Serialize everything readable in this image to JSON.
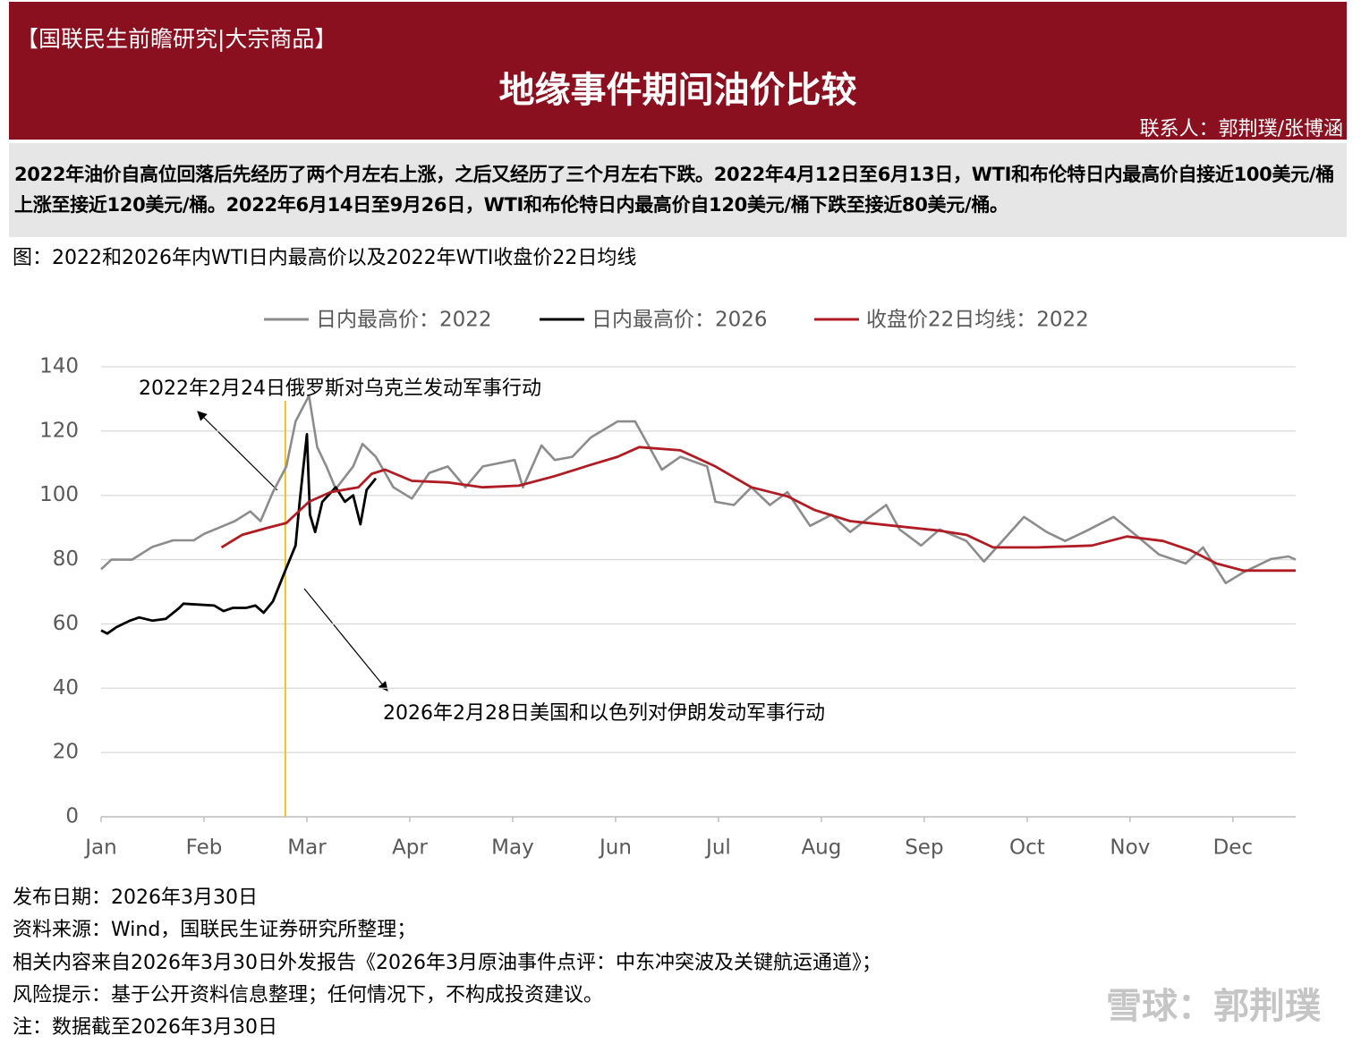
{
  "header": {
    "brand": "【国联民生前瞻研究|大宗商品】",
    "title": "地缘事件期间油价比较",
    "contact": "联系人：郭荆璞/张博涵"
  },
  "summary": "2022年油价自高位回落后先经历了两个月左右上涨，之后又经历了三个月左右下跌。2022年4月12日至6月13日，WTI和布伦特日内最高价自接近100美元/桶上涨至接近120美元/桶。2022年6月14日至9月26日，WTI和布伦特日内最高价自120美元/桶下跌至接近80美元/桶。",
  "caption": "图：2022和2026年内WTI日内最高价以及2022年WTI收盘价22日均线",
  "chart_data": {
    "type": "line",
    "xlim": [
      0,
      11.61
    ],
    "xticks": [
      {
        "value": 0,
        "label": "Jan"
      },
      {
        "value": 1,
        "label": "Feb"
      },
      {
        "value": 2,
        "label": "Mar"
      },
      {
        "value": 3,
        "label": "Apr"
      },
      {
        "value": 4,
        "label": "May"
      },
      {
        "value": 5,
        "label": "Jun"
      },
      {
        "value": 6,
        "label": "Jul"
      },
      {
        "value": 7,
        "label": "Aug"
      },
      {
        "value": 8,
        "label": "Sep"
      },
      {
        "value": 9,
        "label": "Oct"
      },
      {
        "value": 10,
        "label": "Nov"
      },
      {
        "value": 11,
        "label": "Dec"
      }
    ],
    "ylim": [
      0,
      140
    ],
    "yticks": [
      0,
      20,
      40,
      60,
      80,
      100,
      120,
      140
    ],
    "grid": true,
    "legend": "top",
    "series": [
      {
        "name": "日内最高价：2022",
        "color": "#8c8c8c",
        "x": [
          0,
          0.1,
          0.3,
          0.5,
          0.7,
          0.9,
          1.0,
          1.3,
          1.45,
          1.55,
          1.67,
          1.8,
          1.89,
          2.02,
          2.1,
          2.19,
          2.28,
          2.45,
          2.54,
          2.67,
          2.76,
          2.84,
          3.02,
          3.19,
          3.37,
          3.54,
          3.71,
          4.02,
          4.1,
          4.28,
          4.41,
          4.58,
          4.76,
          5.02,
          5.19,
          5.45,
          5.63,
          5.89,
          5.97,
          6.15,
          6.32,
          6.5,
          6.67,
          6.89,
          7.1,
          7.28,
          7.45,
          7.63,
          7.76,
          7.97,
          8.15,
          8.41,
          8.58,
          8.97,
          9.19,
          9.37,
          9.58,
          9.84,
          10.02,
          10.28,
          10.54,
          10.71,
          10.93,
          11.1,
          11.37,
          11.54,
          11.61
        ],
        "values": [
          77,
          80,
          80,
          84,
          86,
          86,
          88,
          92,
          95,
          92,
          101,
          109,
          123,
          131,
          115,
          109,
          102,
          109,
          116,
          112,
          107,
          102.5,
          99,
          107,
          109,
          102.5,
          109,
          111,
          102.5,
          115.5,
          111,
          112,
          118,
          123,
          123,
          108,
          112,
          109,
          98,
          97,
          102.5,
          97,
          101,
          90.5,
          94,
          88.6,
          92.8,
          97,
          89.4,
          84.4,
          89.4,
          85.8,
          79.4,
          93.3,
          88.6,
          85.8,
          89,
          93.3,
          88.6,
          81.6,
          78.8,
          83.8,
          72.7,
          76,
          80.2,
          81,
          80
        ]
      },
      {
        "name": "日内最高价：2026",
        "color": "#000000",
        "x": [
          0,
          0.06,
          0.15,
          0.28,
          0.37,
          0.5,
          0.63,
          0.76,
          0.8,
          1.1,
          1.19,
          1.28,
          1.41,
          1.5,
          1.58,
          1.67,
          1.8,
          1.89,
          1.93,
          2.0,
          2.03,
          2.08,
          2.15,
          2.28,
          2.37,
          2.45,
          2.52,
          2.58,
          2.67
        ],
        "values": [
          58,
          57,
          59,
          61,
          62,
          61,
          61.6,
          65,
          66.3,
          65.7,
          64,
          65,
          65,
          65.7,
          63.5,
          67,
          77.4,
          84.4,
          98,
          119,
          94,
          88.6,
          98,
          102.5,
          98,
          100,
          91,
          101.7,
          105.3
        ]
      },
      {
        "name": "收盘价22日均线：2022",
        "color": "#b01c24",
        "x": [
          1.17,
          1.37,
          1.63,
          1.8,
          2.02,
          2.23,
          2.5,
          2.63,
          2.76,
          3.02,
          3.37,
          3.71,
          4.06,
          4.41,
          4.76,
          5.02,
          5.23,
          5.63,
          5.97,
          6.32,
          6.67,
          6.93,
          7.28,
          7.71,
          8.15,
          8.41,
          8.67,
          9.1,
          9.63,
          9.97,
          10.32,
          10.58,
          10.84,
          11.1,
          11.61
        ],
        "values": [
          83.8,
          87.7,
          90,
          91.4,
          98,
          101,
          102.5,
          106.7,
          108,
          104.5,
          104,
          102.5,
          103,
          106,
          109.5,
          112,
          115,
          114,
          109,
          102.5,
          99.7,
          95.5,
          92,
          90.5,
          89,
          87.7,
          83.8,
          83.8,
          84.4,
          87.2,
          85.8,
          83,
          78.8,
          76.6,
          76.6
        ]
      }
    ],
    "event_line": {
      "x": 1.79,
      "color": "#f0c020"
    },
    "annotations": [
      {
        "text": "2022年2月24日俄罗斯对乌克兰发动军事行动"
      },
      {
        "text": "2026年2月28日美国和以色列对伊朗发动军事行动"
      }
    ]
  },
  "notes": [
    "发布日期：2026年3月30日",
    "资料来源：Wind，国联民生证券研究所整理；",
    "相关内容来自2026年3月30日外发报告《2026年3月原油事件点评：中东冲突波及关键航运通道》；",
    "风险提示：基于公开资料信息整理；任何情况下，不构成投资建议。",
    "注：数据截至2026年3月30日"
  ],
  "watermark": "雪球：郭荆璞"
}
